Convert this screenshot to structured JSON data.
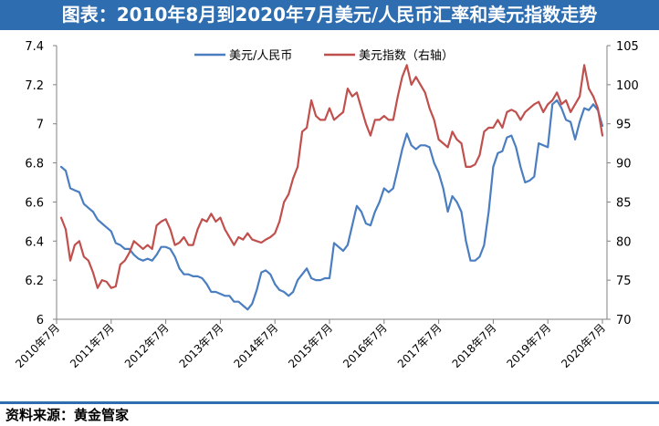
{
  "title": "图表：2010年8月到2020年7月美元/人民币汇率和美元指数走势",
  "source": "资料来源：黄金管家",
  "colors": {
    "header": "#2e6db0",
    "usdcny": "#4a7ec0",
    "dxy": "#c0504d"
  },
  "chart_data": {
    "type": "line",
    "x_tick_labels": [
      "2010年7月",
      "2011年7月",
      "2012年7月",
      "2013年7月",
      "2014年7月",
      "2015年7月",
      "2016年7月",
      "2017年7月",
      "2018年7月",
      "2019年7月",
      "2020年7月"
    ],
    "y_left": {
      "range": [
        6.0,
        7.4
      ],
      "ticks": [
        "6",
        "6.2",
        "6.4",
        "6.6",
        "6.8",
        "7",
        "7.2",
        "7.4"
      ]
    },
    "y_right": {
      "range": [
        70,
        105
      ],
      "ticks": [
        "70",
        "75",
        "80",
        "85",
        "90",
        "95",
        "100",
        "105"
      ]
    },
    "grid": false,
    "legend_position": "top-center",
    "series": [
      {
        "name": "美元/人民币",
        "axis": "left",
        "points": [
          [
            "2010-08",
            6.78
          ],
          [
            "2010-09",
            6.76
          ],
          [
            "2010-10",
            6.67
          ],
          [
            "2010-11",
            6.66
          ],
          [
            "2010-12",
            6.65
          ],
          [
            "2011-01",
            6.59
          ],
          [
            "2011-02",
            6.57
          ],
          [
            "2011-03",
            6.55
          ],
          [
            "2011-04",
            6.51
          ],
          [
            "2011-05",
            6.49
          ],
          [
            "2011-06",
            6.47
          ],
          [
            "2011-07",
            6.45
          ],
          [
            "2011-08",
            6.39
          ],
          [
            "2011-09",
            6.38
          ],
          [
            "2011-10",
            6.36
          ],
          [
            "2011-11",
            6.36
          ],
          [
            "2011-12",
            6.33
          ],
          [
            "2012-01",
            6.31
          ],
          [
            "2012-02",
            6.3
          ],
          [
            "2012-03",
            6.31
          ],
          [
            "2012-04",
            6.3
          ],
          [
            "2012-05",
            6.33
          ],
          [
            "2012-06",
            6.37
          ],
          [
            "2012-07",
            6.37
          ],
          [
            "2012-08",
            6.36
          ],
          [
            "2012-09",
            6.32
          ],
          [
            "2012-10",
            6.26
          ],
          [
            "2012-11",
            6.23
          ],
          [
            "2012-12",
            6.23
          ],
          [
            "2013-01",
            6.22
          ],
          [
            "2013-02",
            6.22
          ],
          [
            "2013-03",
            6.21
          ],
          [
            "2013-04",
            6.18
          ],
          [
            "2013-05",
            6.14
          ],
          [
            "2013-06",
            6.14
          ],
          [
            "2013-07",
            6.13
          ],
          [
            "2013-08",
            6.12
          ],
          [
            "2013-09",
            6.12
          ],
          [
            "2013-10",
            6.09
          ],
          [
            "2013-11",
            6.09
          ],
          [
            "2013-12",
            6.07
          ],
          [
            "2014-01",
            6.05
          ],
          [
            "2014-02",
            6.08
          ],
          [
            "2014-03",
            6.15
          ],
          [
            "2014-04",
            6.24
          ],
          [
            "2014-05",
            6.25
          ],
          [
            "2014-06",
            6.23
          ],
          [
            "2014-07",
            6.18
          ],
          [
            "2014-08",
            6.15
          ],
          [
            "2014-09",
            6.14
          ],
          [
            "2014-10",
            6.12
          ],
          [
            "2014-11",
            6.14
          ],
          [
            "2014-12",
            6.2
          ],
          [
            "2015-01",
            6.23
          ],
          [
            "2015-02",
            6.26
          ],
          [
            "2015-03",
            6.21
          ],
          [
            "2015-04",
            6.2
          ],
          [
            "2015-05",
            6.2
          ],
          [
            "2015-06",
            6.21
          ],
          [
            "2015-07",
            6.21
          ],
          [
            "2015-08",
            6.39
          ],
          [
            "2015-09",
            6.37
          ],
          [
            "2015-10",
            6.35
          ],
          [
            "2015-11",
            6.38
          ],
          [
            "2015-12",
            6.48
          ],
          [
            "2016-01",
            6.58
          ],
          [
            "2016-02",
            6.55
          ],
          [
            "2016-03",
            6.49
          ],
          [
            "2016-04",
            6.48
          ],
          [
            "2016-05",
            6.55
          ],
          [
            "2016-06",
            6.6
          ],
          [
            "2016-07",
            6.67
          ],
          [
            "2016-08",
            6.65
          ],
          [
            "2016-09",
            6.67
          ],
          [
            "2016-10",
            6.77
          ],
          [
            "2016-11",
            6.87
          ],
          [
            "2016-12",
            6.95
          ],
          [
            "2017-01",
            6.89
          ],
          [
            "2017-02",
            6.87
          ],
          [
            "2017-03",
            6.89
          ],
          [
            "2017-04",
            6.89
          ],
          [
            "2017-05",
            6.88
          ],
          [
            "2017-06",
            6.8
          ],
          [
            "2017-07",
            6.75
          ],
          [
            "2017-08",
            6.67
          ],
          [
            "2017-09",
            6.55
          ],
          [
            "2017-10",
            6.63
          ],
          [
            "2017-11",
            6.6
          ],
          [
            "2017-12",
            6.55
          ],
          [
            "2018-01",
            6.4
          ],
          [
            "2018-02",
            6.3
          ],
          [
            "2018-03",
            6.3
          ],
          [
            "2018-04",
            6.32
          ],
          [
            "2018-05",
            6.38
          ],
          [
            "2018-06",
            6.55
          ],
          [
            "2018-07",
            6.78
          ],
          [
            "2018-08",
            6.85
          ],
          [
            "2018-09",
            6.86
          ],
          [
            "2018-10",
            6.93
          ],
          [
            "2018-11",
            6.94
          ],
          [
            "2018-12",
            6.88
          ],
          [
            "2019-01",
            6.78
          ],
          [
            "2019-02",
            6.7
          ],
          [
            "2019-03",
            6.71
          ],
          [
            "2019-04",
            6.73
          ],
          [
            "2019-05",
            6.9
          ],
          [
            "2019-06",
            6.89
          ],
          [
            "2019-07",
            6.88
          ],
          [
            "2019-08",
            7.1
          ],
          [
            "2019-09",
            7.12
          ],
          [
            "2019-10",
            7.08
          ],
          [
            "2019-11",
            7.02
          ],
          [
            "2019-12",
            7.01
          ],
          [
            "2020-01",
            6.92
          ],
          [
            "2020-02",
            7.01
          ],
          [
            "2020-03",
            7.08
          ],
          [
            "2020-04",
            7.07
          ],
          [
            "2020-05",
            7.1
          ],
          [
            "2020-06",
            7.07
          ],
          [
            "2020-07",
            6.99
          ]
        ]
      },
      {
        "name": "美元指数（右轴）",
        "axis": "right",
        "points": [
          [
            "2010-08",
            83.0
          ],
          [
            "2010-09",
            81.5
          ],
          [
            "2010-10",
            77.5
          ],
          [
            "2010-11",
            79.5
          ],
          [
            "2010-12",
            80.0
          ],
          [
            "2011-01",
            78.0
          ],
          [
            "2011-02",
            77.5
          ],
          [
            "2011-03",
            76.0
          ],
          [
            "2011-04",
            74.0
          ],
          [
            "2011-05",
            75.0
          ],
          [
            "2011-06",
            74.8
          ],
          [
            "2011-07",
            74.0
          ],
          [
            "2011-08",
            74.2
          ],
          [
            "2011-09",
            77.0
          ],
          [
            "2011-10",
            77.5
          ],
          [
            "2011-11",
            78.5
          ],
          [
            "2011-12",
            80.0
          ],
          [
            "2012-01",
            79.5
          ],
          [
            "2012-02",
            79.0
          ],
          [
            "2012-03",
            79.5
          ],
          [
            "2012-04",
            79.0
          ],
          [
            "2012-05",
            82.0
          ],
          [
            "2012-06",
            82.5
          ],
          [
            "2012-07",
            82.8
          ],
          [
            "2012-08",
            81.5
          ],
          [
            "2012-09",
            79.5
          ],
          [
            "2012-10",
            79.8
          ],
          [
            "2012-11",
            80.5
          ],
          [
            "2012-12",
            79.5
          ],
          [
            "2013-01",
            79.5
          ],
          [
            "2013-02",
            81.5
          ],
          [
            "2013-03",
            82.8
          ],
          [
            "2013-04",
            82.5
          ],
          [
            "2013-05",
            83.5
          ],
          [
            "2013-06",
            82.5
          ],
          [
            "2013-07",
            83.0
          ],
          [
            "2013-08",
            81.5
          ],
          [
            "2013-09",
            80.5
          ],
          [
            "2013-10",
            79.5
          ],
          [
            "2013-11",
            80.5
          ],
          [
            "2013-12",
            80.2
          ],
          [
            "2014-01",
            81.0
          ],
          [
            "2014-02",
            80.2
          ],
          [
            "2014-03",
            80.0
          ],
          [
            "2014-04",
            79.8
          ],
          [
            "2014-05",
            80.2
          ],
          [
            "2014-06",
            80.5
          ],
          [
            "2014-07",
            81.0
          ],
          [
            "2014-08",
            82.5
          ],
          [
            "2014-09",
            85.0
          ],
          [
            "2014-10",
            86.0
          ],
          [
            "2014-11",
            88.0
          ],
          [
            "2014-12",
            89.5
          ],
          [
            "2015-01",
            94.0
          ],
          [
            "2015-02",
            94.5
          ],
          [
            "2015-03",
            98.0
          ],
          [
            "2015-04",
            96.0
          ],
          [
            "2015-05",
            95.5
          ],
          [
            "2015-06",
            95.5
          ],
          [
            "2015-07",
            97.0
          ],
          [
            "2015-08",
            95.5
          ],
          [
            "2015-09",
            96.0
          ],
          [
            "2015-10",
            96.5
          ],
          [
            "2015-11",
            99.5
          ],
          [
            "2015-12",
            98.5
          ],
          [
            "2016-01",
            99.0
          ],
          [
            "2016-02",
            97.0
          ],
          [
            "2016-03",
            95.0
          ],
          [
            "2016-04",
            93.5
          ],
          [
            "2016-05",
            95.5
          ],
          [
            "2016-06",
            95.5
          ],
          [
            "2016-07",
            96.0
          ],
          [
            "2016-08",
            95.5
          ],
          [
            "2016-09",
            95.5
          ],
          [
            "2016-10",
            98.5
          ],
          [
            "2016-11",
            101.0
          ],
          [
            "2016-12",
            102.5
          ],
          [
            "2017-01",
            100.0
          ],
          [
            "2017-02",
            101.0
          ],
          [
            "2017-03",
            100.0
          ],
          [
            "2017-04",
            99.0
          ],
          [
            "2017-05",
            97.0
          ],
          [
            "2017-06",
            95.5
          ],
          [
            "2017-07",
            93.0
          ],
          [
            "2017-08",
            92.5
          ],
          [
            "2017-09",
            92.0
          ],
          [
            "2017-10",
            94.0
          ],
          [
            "2017-11",
            93.0
          ],
          [
            "2017-12",
            92.5
          ],
          [
            "2018-01",
            89.5
          ],
          [
            "2018-02",
            89.5
          ],
          [
            "2018-03",
            89.8
          ],
          [
            "2018-04",
            91.0
          ],
          [
            "2018-05",
            94.0
          ],
          [
            "2018-06",
            94.5
          ],
          [
            "2018-07",
            94.5
          ],
          [
            "2018-08",
            95.5
          ],
          [
            "2018-09",
            94.5
          ],
          [
            "2018-10",
            96.5
          ],
          [
            "2018-11",
            96.8
          ],
          [
            "2018-12",
            96.5
          ],
          [
            "2019-01",
            95.5
          ],
          [
            "2019-02",
            96.5
          ],
          [
            "2019-03",
            97.0
          ],
          [
            "2019-04",
            97.5
          ],
          [
            "2019-05",
            97.8
          ],
          [
            "2019-06",
            96.5
          ],
          [
            "2019-07",
            97.5
          ],
          [
            "2019-08",
            98.0
          ],
          [
            "2019-09",
            99.0
          ],
          [
            "2019-10",
            97.5
          ],
          [
            "2019-11",
            98.0
          ],
          [
            "2019-12",
            96.5
          ],
          [
            "2020-01",
            97.5
          ],
          [
            "2020-02",
            98.5
          ],
          [
            "2020-03",
            102.5
          ],
          [
            "2020-04",
            99.5
          ],
          [
            "2020-05",
            98.5
          ],
          [
            "2020-06",
            97.0
          ],
          [
            "2020-07",
            93.5
          ]
        ]
      }
    ]
  }
}
